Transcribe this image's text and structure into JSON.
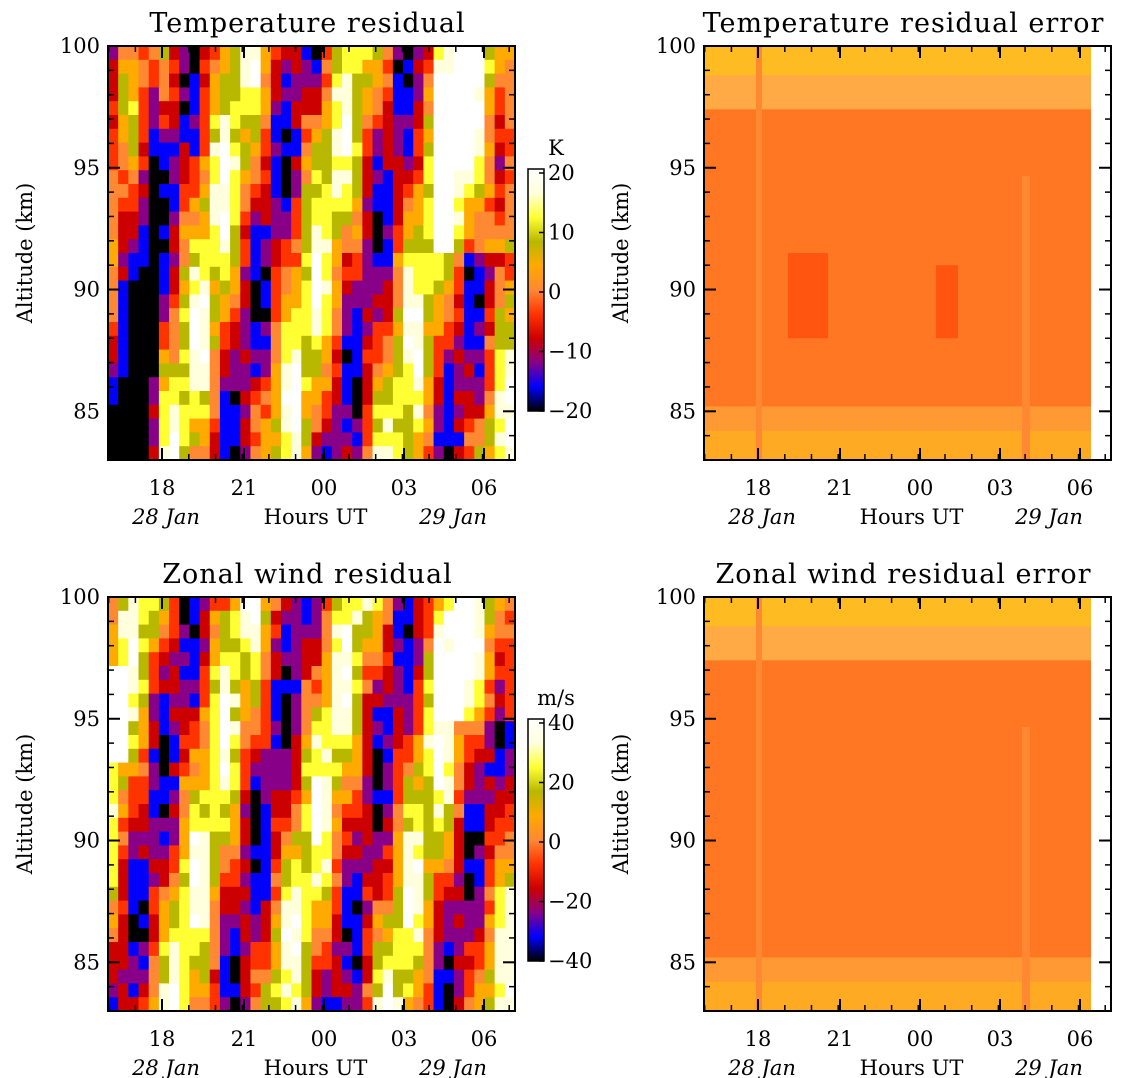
{
  "colors": {
    "scale": [
      "#000000",
      "#0000ff",
      "#880088",
      "#cc0000",
      "#ff3300",
      "#ff8833",
      "#ffaa00",
      "#b8b800",
      "#ffff33",
      "#ffffdd",
      "#ffffff"
    ],
    "error_fill": "#ff7722",
    "error_dark": "#ff5511"
  },
  "chart_data": [
    {
      "type": "heatmap",
      "title": "Temperature residual",
      "ylabel": "Altitude (km)",
      "xlabel": "Hours UT",
      "x_ticks": [
        "18",
        "21",
        "00",
        "03",
        "06"
      ],
      "x_dates": [
        "28 Jan",
        "29 Jan"
      ],
      "y_ticks": [
        "85",
        "90",
        "95",
        "100"
      ],
      "ylim": [
        83,
        100
      ],
      "colorbar": {
        "unit": "K",
        "ticks": [
          "20",
          "10",
          "0",
          "−10",
          "−20"
        ],
        "range": [
          -20,
          20
        ]
      }
    },
    {
      "type": "heatmap",
      "title": "Temperature residual error",
      "ylabel": "Altitude (km)",
      "xlabel": "Hours UT",
      "x_ticks": [
        "18",
        "21",
        "00",
        "03",
        "06"
      ],
      "x_dates": [
        "28 Jan",
        "29 Jan"
      ],
      "y_ticks": [
        "85",
        "90",
        "95",
        "100"
      ],
      "ylim": [
        83,
        100
      ]
    },
    {
      "type": "heatmap",
      "title": "Zonal wind residual",
      "ylabel": "Altitude (km)",
      "xlabel": "Hours UT",
      "x_ticks": [
        "18",
        "21",
        "00",
        "03",
        "06"
      ],
      "x_dates": [
        "28 Jan",
        "29 Jan"
      ],
      "y_ticks": [
        "85",
        "90",
        "95",
        "100"
      ],
      "ylim": [
        83,
        100
      ],
      "colorbar": {
        "unit": "m/s",
        "ticks": [
          "40",
          "20",
          "0",
          "−20",
          "−40"
        ],
        "range": [
          -40,
          40
        ]
      }
    },
    {
      "type": "heatmap",
      "title": "Zonal wind residual error",
      "ylabel": "Altitude (km)",
      "xlabel": "Hours UT",
      "x_ticks": [
        "18",
        "21",
        "00",
        "03",
        "06"
      ],
      "x_dates": [
        "28 Jan",
        "29 Jan"
      ],
      "y_ticks": [
        "85",
        "90",
        "95",
        "100"
      ],
      "ylim": [
        83,
        100
      ]
    }
  ]
}
